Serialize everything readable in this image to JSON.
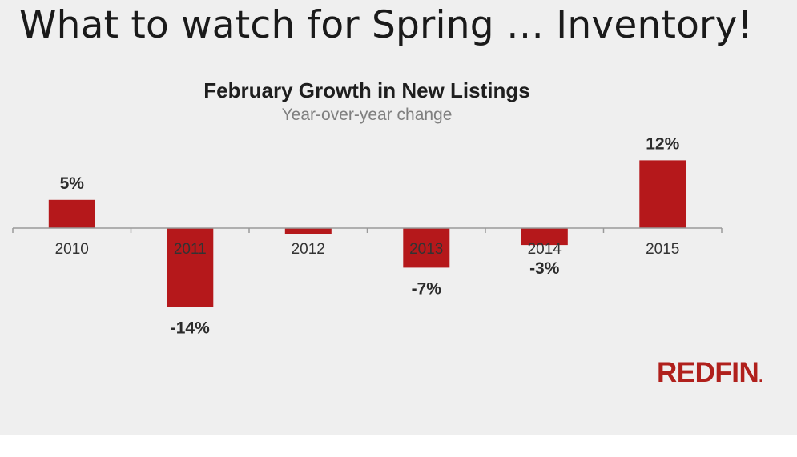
{
  "slide": {
    "title": "What to watch for Spring … Inventory!",
    "logo_text": "REDFIN",
    "logo_mark": "."
  },
  "chart_data": {
    "type": "bar",
    "title": "February Growth in New Listings",
    "subtitle": "Year-over-year change",
    "categories": [
      "2010",
      "2011",
      "2012",
      "2013",
      "2014",
      "2015"
    ],
    "values": [
      5,
      -14,
      -1,
      -7,
      -3,
      12
    ],
    "data_labels": [
      "5%",
      "-14%",
      "",
      "-7%",
      "-3%",
      "12%"
    ],
    "unit": "%",
    "grid": false,
    "legend": "none",
    "bar_color": "#b5181b",
    "axis_color": "#9a9a9a",
    "label_color": "#2b2b2b"
  }
}
